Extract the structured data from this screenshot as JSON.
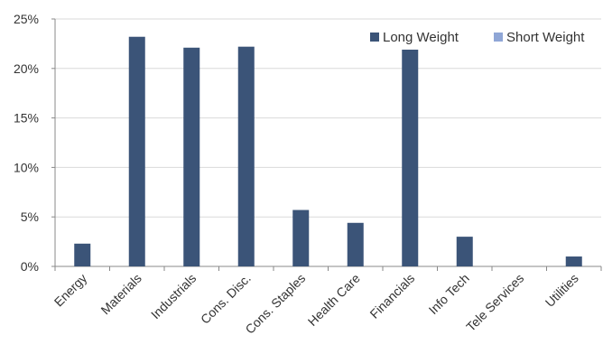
{
  "chart_data": {
    "type": "bar",
    "title": "",
    "xlabel": "",
    "ylabel": "",
    "categories": [
      "Energy",
      "Materials",
      "Industrials",
      "Cons. Disc.",
      "Cons. Staples",
      "Health Care",
      "Financials",
      "Info Tech",
      "Tele Services",
      "Utilities"
    ],
    "series": [
      {
        "name": "Long Weight",
        "color": "#3b5478",
        "values": [
          2.3,
          23.2,
          22.1,
          22.2,
          5.7,
          4.4,
          21.9,
          3.0,
          0.0,
          1.0
        ]
      },
      {
        "name": "Short Weight",
        "color": "#8fa6d6",
        "values": [
          0,
          0,
          0,
          0,
          0,
          0,
          0,
          0,
          0,
          0
        ]
      }
    ],
    "ylim": [
      0,
      25
    ],
    "yticks": [
      0,
      5,
      10,
      15,
      20,
      25
    ],
    "ytick_labels": [
      "0%",
      "5%",
      "10%",
      "15%",
      "20%",
      "25%"
    ],
    "grid": true,
    "legend_position": "top-right"
  }
}
